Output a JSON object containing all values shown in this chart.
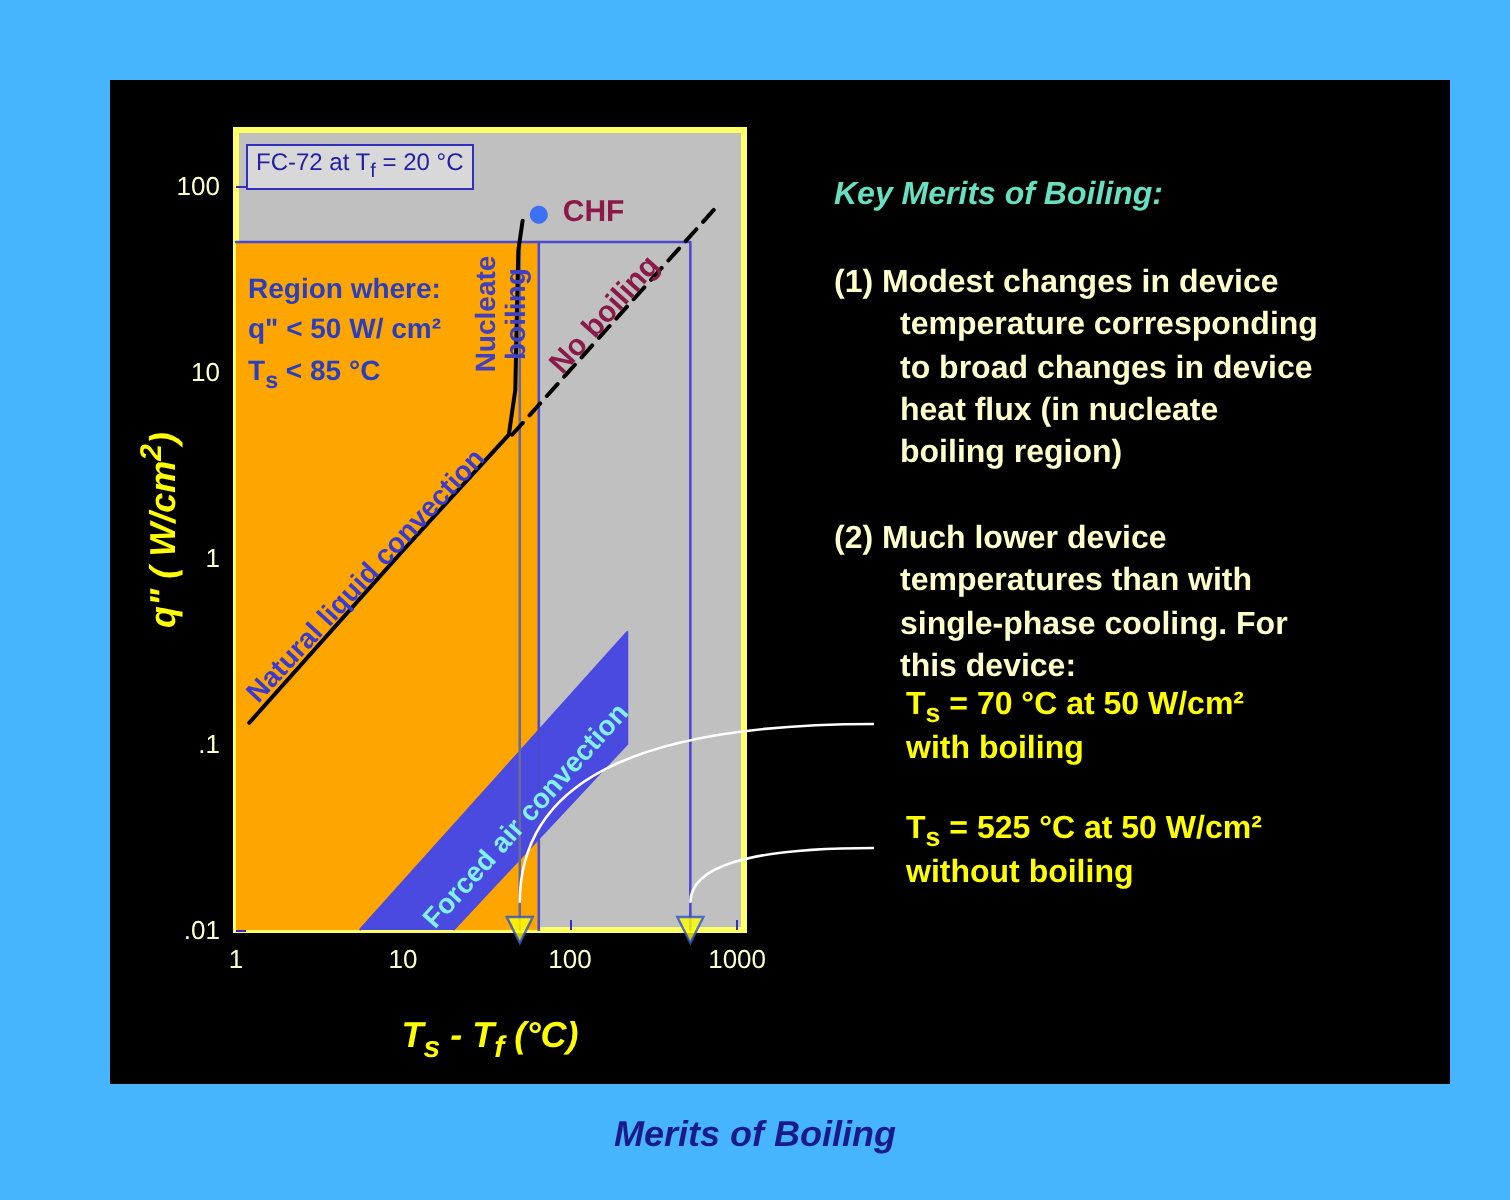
{
  "chart_data": {
    "type": "line",
    "title": "Merits of Boiling",
    "xlabel": "T$_{s}$ - T$_{f}$ (°C)",
    "ylabel": "q\" ( W/cm$^{2}$)",
    "log": "xy",
    "grid": false,
    "xlim": [
      1,
      1100
    ],
    "xticks": [
      1,
      10,
      100,
      1000
    ],
    "ylim": [
      0.01,
      200
    ],
    "yticks": [
      {
        "value": 0.01,
        "label": ".01"
      },
      {
        "value": 0.1,
        "label": ".1"
      },
      1,
      10,
      100
    ],
    "series": [
      {
        "type": "area",
        "color": "#ffa500",
        "x": [
          1,
          65
        ],
        "values": [
          50,
          50
        ]
      },
      {
        "type": "area",
        "color": "#4a4ae0",
        "x": [
          5.5,
          220,
          220,
          20
        ],
        "values": [
          0.01,
          0.4,
          0.1,
          0.01
        ]
      },
      {
        "color": "#4a4ad0",
        "x": [
          1,
          525,
          525
        ],
        "values": [
          50,
          50,
          0.01
        ]
      },
      {
        "color": "#4a4ad0",
        "x": [
          65,
          65
        ],
        "values": [
          50,
          0.01
        ]
      },
      {
        "color": "#6a6a9a",
        "x": [
          50,
          50
        ],
        "values": [
          50,
          0.01
        ]
      },
      {
        "color": "#000000",
        "x": [
          1.2,
          10,
          43,
          47,
          48,
          49,
          52
        ],
        "values": [
          0.13,
          1.1,
          4.6,
          8,
          20,
          45,
          65
        ]
      },
      {
        "color": "#000000",
        "line_style": "dashed",
        "x": [
          45,
          760
        ],
        "values": [
          4.6,
          78
        ]
      },
      {
        "type": "scatter",
        "color": "#1a5cff",
        "marker": "circle",
        "x": [
          65
        ],
        "values": [
          70
        ]
      },
      {
        "type": "scatter",
        "color": "#ffff00",
        "marker": "triangle",
        "x": [
          50,
          525
        ],
        "values": [
          0.01,
          0.01
        ]
      }
    ],
    "annotations": [
      "FC-72 at T$_{f}$ = 20 °C",
      "Region where:\nq\" < 50 W/ cm²\nT$_{s}$ < 85 °C",
      {
        "text": "CHF",
        "x": 65,
        "y": 70
      },
      "Nucleate\nboiling",
      "No boiling",
      "Natural liquid convection",
      "Forced air convection",
      "Key Merits of Boiling:",
      "(1)  Modest changes in device\ntemperature corresponding\nto broad changes in device\nheat flux (in nucleate\nboiling region)",
      "(2)  Much lower device\ntemperatures than with\nsingle-phase cooling.  For\nthis device:",
      {
        "text": "T$_{s}$ = 70 °C at 50 W/cm²\nwith boiling",
        "x": 50,
        "y": 0.014
      },
      {
        "text": "T$_{s}$ = 525 °C at 50 W/cm²\nwithout boiling",
        "x": 525,
        "y": 0.014
      }
    ]
  }
}
